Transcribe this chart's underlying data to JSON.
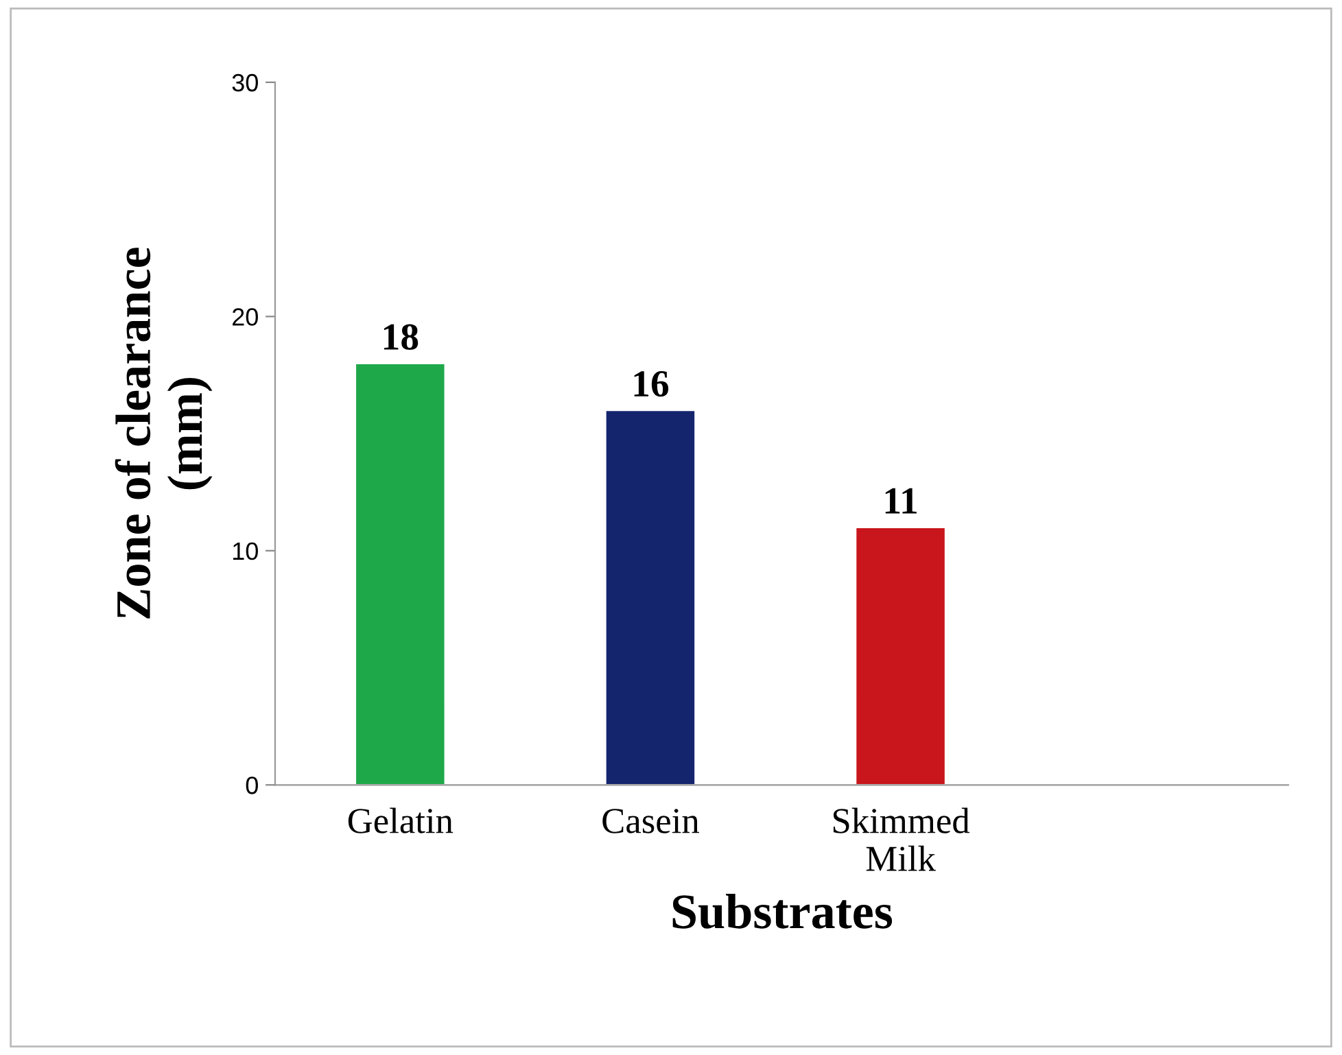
{
  "chart_data": {
    "type": "bar",
    "xlabel": "Substrates",
    "ylabel": "Zone of clearance\n(mm)",
    "categories": [
      "Gelatin",
      "Casein",
      "Skimmed Milk"
    ],
    "values": [
      18,
      16,
      11
    ],
    "colors": [
      "#1fa84a",
      "#14256e",
      "#c8161c"
    ],
    "ylim": [
      0,
      30
    ],
    "yticks": [
      0,
      10,
      20,
      30
    ],
    "data_labels": true,
    "grid": false,
    "legend": false
  }
}
